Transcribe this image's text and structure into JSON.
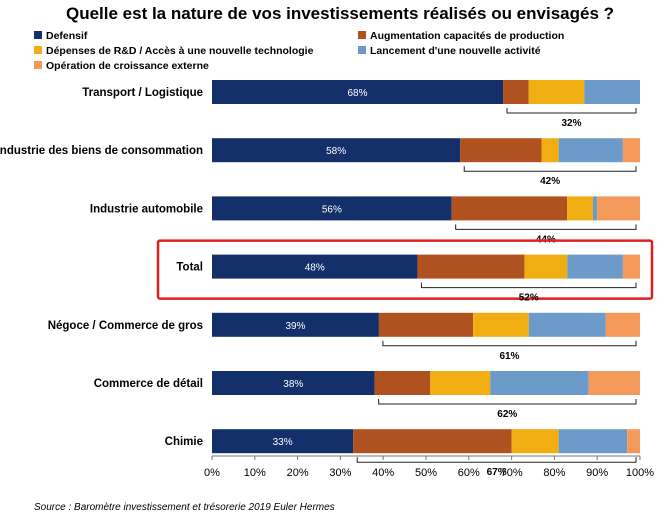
{
  "chart_data": {
    "type": "bar",
    "orientation": "horizontal",
    "stacked": true,
    "title": "Quelle est la nature de vos investissements réalisés ou envisagés ?",
    "categories": [
      "Transport / Logistique",
      "Industrie des biens de consommation",
      "Industrie automobile",
      "Total",
      "Négoce / Commerce de gros",
      "Commerce de détail",
      "Chimie"
    ],
    "series": [
      {
        "name": "Defensif",
        "color": "#13306a",
        "values": [
          68,
          58,
          56,
          48,
          39,
          38,
          33
        ]
      },
      {
        "name": "Augmentation capacités de production",
        "color": "#b0521f",
        "values": [
          6,
          19,
          27,
          25,
          22,
          13,
          37
        ]
      },
      {
        "name": "Dépenses de R&D / Accès à une nouvelle technologie",
        "color": "#f1ae13",
        "values": [
          13,
          4,
          6,
          10,
          13,
          14,
          11
        ]
      },
      {
        "name": "Lancement d'une nouvelle activité",
        "color": "#6c9ac9",
        "values": [
          13,
          15,
          1,
          13,
          18,
          23,
          16
        ]
      },
      {
        "name": "Opération de croissance externe",
        "color": "#f39a5a",
        "values": [
          0,
          4,
          10,
          4,
          8,
          12,
          3
        ]
      }
    ],
    "data_labels": [
      "68%",
      "58%",
      "56%",
      "48%",
      "39%",
      "38%",
      "33%"
    ],
    "bracket_labels": [
      "32%",
      "42%",
      "44%",
      "52%",
      "61%",
      "62%",
      "67%"
    ],
    "highlight_category": "Total",
    "xlim": [
      0,
      100
    ],
    "xticks": [
      "0%",
      "10%",
      "20%",
      "30%",
      "40%",
      "50%",
      "60%",
      "70%",
      "80%",
      "90%",
      "100%"
    ],
    "legend_position": "top",
    "grid": false
  },
  "source": "Source : Baromètre investissement et trésorerie 2019  Euler Hermes"
}
